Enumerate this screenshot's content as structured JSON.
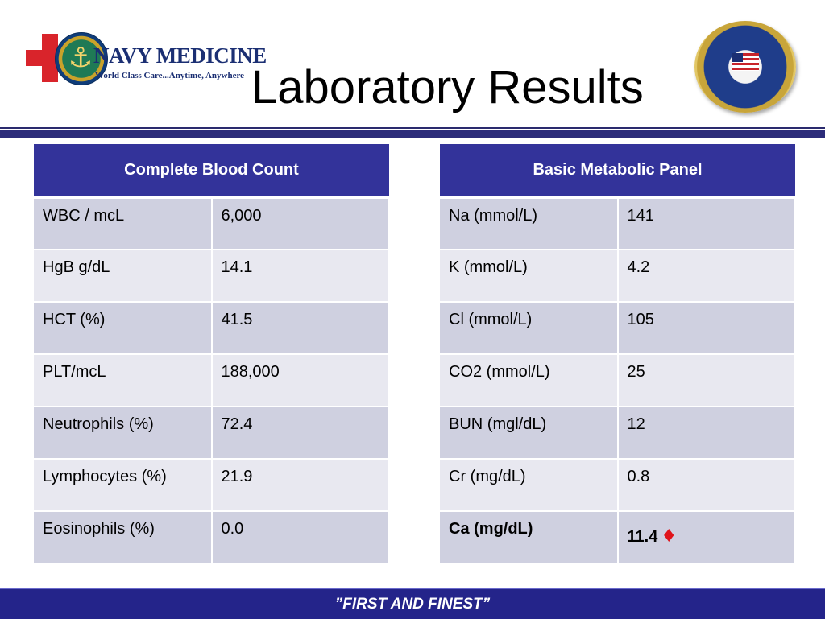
{
  "header": {
    "brand": "NAVY MEDICINE",
    "tagline": "World Class Care...Anytime, Anywhere",
    "title": "Laboratory Results"
  },
  "cbc": {
    "header": "Complete Blood Count",
    "rows": [
      {
        "label": "WBC / mcL",
        "value": "6,000"
      },
      {
        "label": "HgB g/dL",
        "value": "14.1"
      },
      {
        "label": "HCT (%)",
        "value": "41.5"
      },
      {
        "label": "PLT/mcL",
        "value": "188,000"
      },
      {
        "label": "Neutrophils (%)",
        "value": "72.4"
      },
      {
        "label": "Lymphocytes (%)",
        "value": "21.9"
      },
      {
        "label": "Eosinophils (%)",
        "value": "0.0"
      }
    ]
  },
  "bmp": {
    "header": "Basic Metabolic Panel",
    "rows": [
      {
        "label": "Na (mmol/L)",
        "value": "141"
      },
      {
        "label": "K (mmol/L)",
        "value": "4.2"
      },
      {
        "label": "Cl (mmol/L)",
        "value": "105"
      },
      {
        "label": "CO2 (mmol/L)",
        "value": "25"
      },
      {
        "label": "BUN (mgl/dL)",
        "value": "12"
      },
      {
        "label": "Cr (mg/dL)",
        "value": "0.8"
      },
      {
        "label": "Ca (mg/dL)",
        "value": "11.4",
        "flag_icon": "red-diamond-icon"
      }
    ]
  },
  "footer": {
    "motto": "”FIRST AND FINEST”"
  },
  "colors": {
    "table_header": "#33339a",
    "row_dark": "#cfd0e0",
    "row_light": "#e8e8f0",
    "footer_bar": "#24248a",
    "flag": "#e0141b"
  }
}
